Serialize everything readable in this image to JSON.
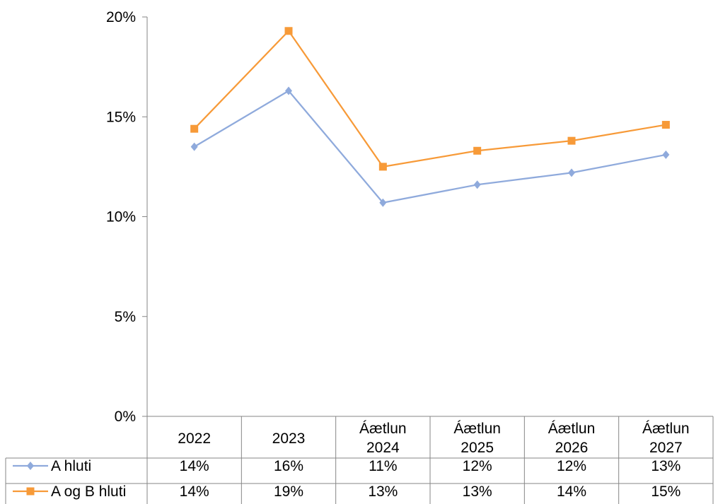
{
  "chart_data": {
    "type": "line",
    "title": "",
    "xlabel": "",
    "ylabel": "",
    "ylim": [
      0,
      0.2
    ],
    "y_ticks": [
      "0%",
      "5%",
      "10%",
      "15%",
      "20%"
    ],
    "y_tick_values": [
      0,
      0.05,
      0.1,
      0.15,
      0.2
    ],
    "grid": false,
    "legend": "data-table-below",
    "categories": [
      {
        "lines": [
          "2022"
        ]
      },
      {
        "lines": [
          "2023"
        ]
      },
      {
        "lines": [
          "Áætlun",
          "2024"
        ]
      },
      {
        "lines": [
          "Áætlun",
          "2025"
        ]
      },
      {
        "lines": [
          "Áætlun",
          "2026"
        ]
      },
      {
        "lines": [
          "Áætlun",
          "2027"
        ]
      }
    ],
    "series": [
      {
        "name": "A hluti",
        "color": "#8faadc",
        "marker": "diamond",
        "values": [
          0.135,
          0.163,
          0.107,
          0.116,
          0.122,
          0.131
        ],
        "labels": [
          "14%",
          "16%",
          "11%",
          "12%",
          "12%",
          "13%"
        ]
      },
      {
        "name": "A og B hluti",
        "color": "#f79a38",
        "marker": "square",
        "values": [
          0.144,
          0.193,
          0.125,
          0.133,
          0.138,
          0.146
        ],
        "labels": [
          "14%",
          "19%",
          "13%",
          "13%",
          "14%",
          "15%"
        ]
      }
    ]
  }
}
